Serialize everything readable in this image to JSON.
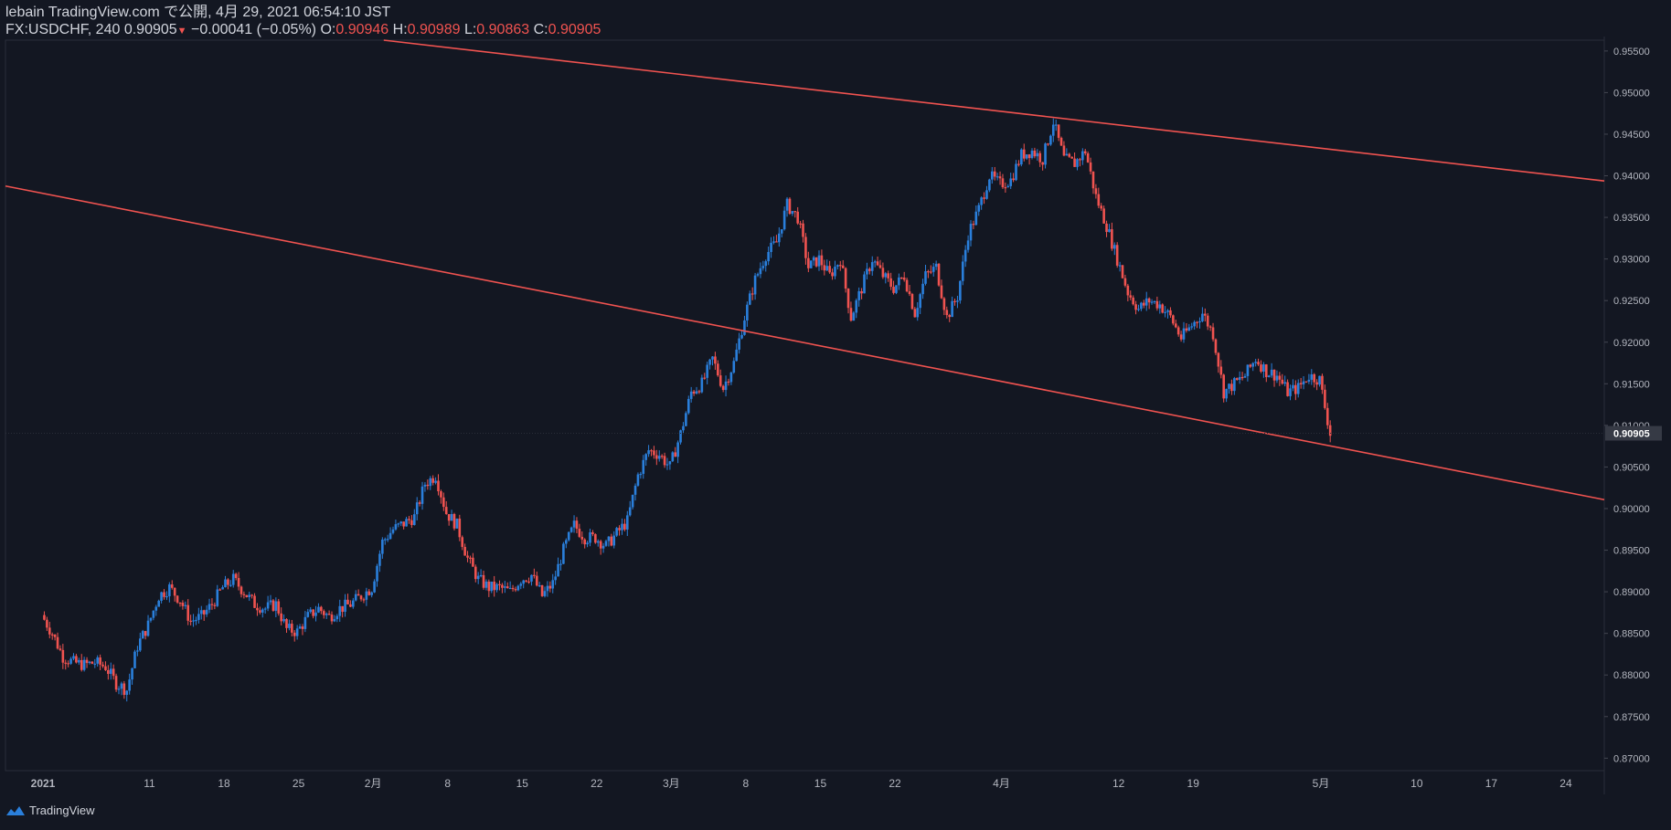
{
  "header": {
    "publish_line": "lebain TradingView.com で公開, 4月 29, 2021 06:54:10 JST",
    "symbol": "FX:USDCHF, 240",
    "last": "0.90905",
    "change": "−0.00041 (−0.05%)",
    "o_label": "O:",
    "o_value": "0.90946",
    "h_label": "H:",
    "h_value": "0.90989",
    "l_label": "L:",
    "l_value": "0.90863",
    "c_label": "C:",
    "c_value": "0.90905"
  },
  "footer": {
    "brand": "TradingView"
  },
  "colors": {
    "background": "#131722",
    "up": "#2a7fdb",
    "down": "#f05350",
    "trendline": "#f05350",
    "axis_text": "#b2b5be"
  },
  "chart_data": {
    "type": "candlestick",
    "symbol": "FX:USDCHF",
    "interval": "240",
    "ylim": [
      0.8685,
      0.9563
    ],
    "y_ticks": [
      "0.95500",
      "0.95000",
      "0.94500",
      "0.94000",
      "0.93500",
      "0.93000",
      "0.92500",
      "0.92000",
      "0.91500",
      "0.91000",
      "0.90500",
      "0.90000",
      "0.89500",
      "0.89000",
      "0.88500",
      "0.88000",
      "0.87500",
      "0.87000"
    ],
    "last_price_label": "0.90905",
    "last_price": 0.90905,
    "x_axis_days": {
      "start": 0,
      "end": 121,
      "note_unit": "calendar days"
    },
    "x_ticks": [
      {
        "day": 0,
        "label": "2021"
      },
      {
        "day": 10,
        "label": "11"
      },
      {
        "day": 17,
        "label": "18"
      },
      {
        "day": 24,
        "label": "25"
      },
      {
        "day": 31,
        "label": "2月"
      },
      {
        "day": 38,
        "label": "8"
      },
      {
        "day": 45,
        "label": "15"
      },
      {
        "day": 52,
        "label": "22"
      },
      {
        "day": 59,
        "label": "3月"
      },
      {
        "day": 66,
        "label": "8"
      },
      {
        "day": 73,
        "label": "15"
      },
      {
        "day": 80,
        "label": "22"
      },
      {
        "day": 90,
        "label": "4月"
      },
      {
        "day": 101,
        "label": "12"
      },
      {
        "day": 108,
        "label": "19"
      },
      {
        "day": 120,
        "label": "5月"
      },
      {
        "day": 129,
        "label": "10"
      },
      {
        "day": 136,
        "label": "17"
      },
      {
        "day": 143,
        "label": "24"
      }
    ],
    "close_path": [
      [
        0,
        0.8872
      ],
      [
        1,
        0.885
      ],
      [
        2,
        0.8822
      ],
      [
        3,
        0.8815
      ],
      [
        4,
        0.8812
      ],
      [
        5,
        0.8815
      ],
      [
        6,
        0.881
      ],
      [
        7,
        0.879
      ],
      [
        8,
        0.8782
      ],
      [
        9,
        0.8835
      ],
      [
        10,
        0.886
      ],
      [
        11,
        0.8895
      ],
      [
        12,
        0.8905
      ],
      [
        13,
        0.889
      ],
      [
        14,
        0.8865
      ],
      [
        15,
        0.887
      ],
      [
        16,
        0.8885
      ],
      [
        17,
        0.8905
      ],
      [
        18,
        0.8915
      ],
      [
        19,
        0.89
      ],
      [
        20,
        0.8885
      ],
      [
        21,
        0.888
      ],
      [
        22,
        0.8885
      ],
      [
        23,
        0.8855
      ],
      [
        24,
        0.8852
      ],
      [
        25,
        0.887
      ],
      [
        26,
        0.888
      ],
      [
        27,
        0.887
      ],
      [
        28,
        0.888
      ],
      [
        29,
        0.8885
      ],
      [
        30,
        0.8895
      ],
      [
        31,
        0.8905
      ],
      [
        32,
        0.896
      ],
      [
        33,
        0.8975
      ],
      [
        34,
        0.8982
      ],
      [
        35,
        0.899
      ],
      [
        36,
        0.903
      ],
      [
        37,
        0.904
      ],
      [
        38,
        0.8995
      ],
      [
        39,
        0.898
      ],
      [
        40,
        0.894
      ],
      [
        41,
        0.8915
      ],
      [
        42,
        0.8905
      ],
      [
        43,
        0.8905
      ],
      [
        44,
        0.89
      ],
      [
        45,
        0.8915
      ],
      [
        46,
        0.892
      ],
      [
        47,
        0.8895
      ],
      [
        48,
        0.891
      ],
      [
        49,
        0.895
      ],
      [
        50,
        0.898
      ],
      [
        51,
        0.8965
      ],
      [
        52,
        0.8965
      ],
      [
        53,
        0.8955
      ],
      [
        54,
        0.897
      ],
      [
        55,
        0.8985
      ],
      [
        56,
        0.904
      ],
      [
        57,
        0.907
      ],
      [
        58,
        0.9065
      ],
      [
        59,
        0.905
      ],
      [
        60,
        0.909
      ],
      [
        61,
        0.914
      ],
      [
        62,
        0.915
      ],
      [
        63,
        0.918
      ],
      [
        64,
        0.9145
      ],
      [
        65,
        0.9175
      ],
      [
        66,
        0.923
      ],
      [
        67,
        0.9275
      ],
      [
        68,
        0.9305
      ],
      [
        69,
        0.932
      ],
      [
        70,
        0.9365
      ],
      [
        71,
        0.935
      ],
      [
        72,
        0.929
      ],
      [
        73,
        0.93
      ],
      [
        74,
        0.928
      ],
      [
        75,
        0.93
      ],
      [
        76,
        0.923
      ],
      [
        77,
        0.9265
      ],
      [
        78,
        0.93
      ],
      [
        79,
        0.928
      ],
      [
        80,
        0.9265
      ],
      [
        81,
        0.928
      ],
      [
        82,
        0.9235
      ],
      [
        83,
        0.928
      ],
      [
        84,
        0.929
      ],
      [
        85,
        0.923
      ],
      [
        86,
        0.9255
      ],
      [
        87,
        0.933
      ],
      [
        88,
        0.936
      ],
      [
        89,
        0.94
      ],
      [
        90,
        0.939
      ],
      [
        91,
        0.9395
      ],
      [
        92,
        0.9425
      ],
      [
        93,
        0.943
      ],
      [
        94,
        0.942
      ],
      [
        95,
        0.9465
      ],
      [
        96,
        0.942
      ],
      [
        97,
        0.9415
      ],
      [
        98,
        0.943
      ],
      [
        99,
        0.9375
      ],
      [
        100,
        0.934
      ],
      [
        101,
        0.93
      ],
      [
        102,
        0.926
      ],
      [
        103,
        0.924
      ],
      [
        104,
        0.925
      ],
      [
        105,
        0.9245
      ],
      [
        106,
        0.923
      ],
      [
        107,
        0.9205
      ],
      [
        108,
        0.922
      ],
      [
        109,
        0.9235
      ],
      [
        110,
        0.921
      ],
      [
        111,
        0.914
      ],
      [
        112,
        0.915
      ],
      [
        113,
        0.916
      ],
      [
        114,
        0.918
      ],
      [
        115,
        0.9165
      ],
      [
        116,
        0.916
      ],
      [
        117,
        0.914
      ],
      [
        118,
        0.9145
      ],
      [
        119,
        0.916
      ],
      [
        120,
        0.9155
      ],
      [
        121,
        0.909
      ]
    ],
    "trendlines": [
      {
        "name": "",
        "points": [
          [
            -16,
            0.9419
          ],
          [
            121,
            0.9075
          ]
        ],
        "extend_to_day": 150
      },
      {
        "name": "",
        "points": [
          [
            32,
            0.9563
          ],
          [
            95,
            0.947
          ]
        ],
        "extend_to_day": 150
      }
    ]
  }
}
